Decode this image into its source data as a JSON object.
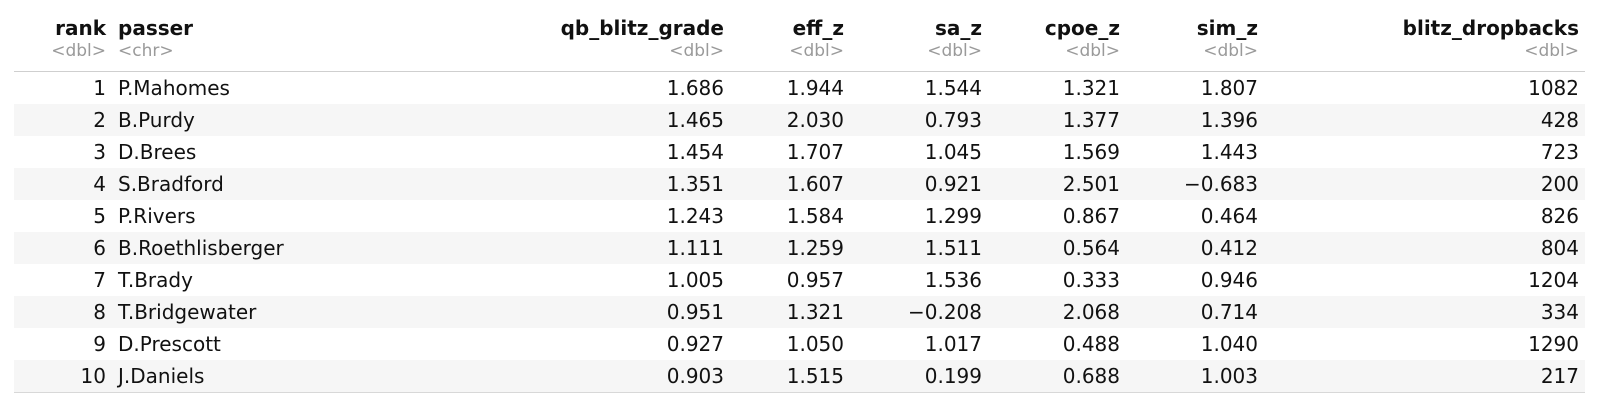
{
  "columns": [
    {
      "name": "rank",
      "type": "<dbl>"
    },
    {
      "name": "passer",
      "type": "<chr>"
    },
    {
      "name": "qb_blitz_grade",
      "type": "<dbl>"
    },
    {
      "name": "eff_z",
      "type": "<dbl>"
    },
    {
      "name": "sa_z",
      "type": "<dbl>"
    },
    {
      "name": "cpoe_z",
      "type": "<dbl>"
    },
    {
      "name": "sim_z",
      "type": "<dbl>"
    },
    {
      "name": "blitz_dropbacks",
      "type": "<dbl>"
    }
  ],
  "rows": [
    [
      "1",
      "P.Mahomes",
      "1.686",
      "1.944",
      "1.544",
      "1.321",
      "1.807",
      "1082"
    ],
    [
      "2",
      "B.Purdy",
      "1.465",
      "2.030",
      "0.793",
      "1.377",
      "1.396",
      "428"
    ],
    [
      "3",
      "D.Brees",
      "1.454",
      "1.707",
      "1.045",
      "1.569",
      "1.443",
      "723"
    ],
    [
      "4",
      "S.Bradford",
      "1.351",
      "1.607",
      "0.921",
      "2.501",
      "−0.683",
      "200"
    ],
    [
      "5",
      "P.Rivers",
      "1.243",
      "1.584",
      "1.299",
      "0.867",
      "0.464",
      "826"
    ],
    [
      "6",
      "B.Roethlisberger",
      "1.111",
      "1.259",
      "1.511",
      "0.564",
      "0.412",
      "804"
    ],
    [
      "7",
      "T.Brady",
      "1.005",
      "0.957",
      "1.536",
      "0.333",
      "0.946",
      "1204"
    ],
    [
      "8",
      "T.Bridgewater",
      "0.951",
      "1.321",
      "−0.208",
      "2.068",
      "0.714",
      "334"
    ],
    [
      "9",
      "D.Prescott",
      "0.927",
      "1.050",
      "1.017",
      "0.488",
      "1.040",
      "1290"
    ],
    [
      "10",
      "J.Daniels",
      "0.903",
      "1.515",
      "0.199",
      "0.688",
      "1.003",
      "217"
    ]
  ],
  "colors": {
    "text": "#111111",
    "type_label": "#9a9a9a",
    "stripe": "#f6f6f6",
    "rule": "#cfcfcf"
  }
}
